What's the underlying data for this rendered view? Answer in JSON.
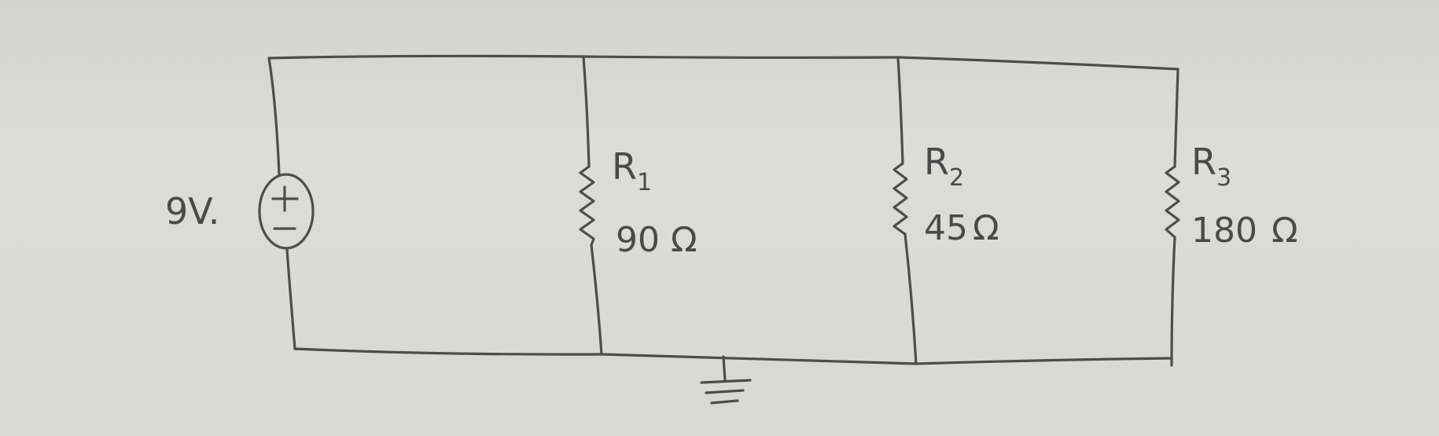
{
  "source": {
    "voltage_label": "9V."
  },
  "resistors": [
    {
      "name": "R",
      "subscript": "1",
      "value": "90",
      "unit": "Ω"
    },
    {
      "name": "R",
      "subscript": "2",
      "value": "45",
      "unit": "Ω"
    },
    {
      "name": "R",
      "subscript": "3",
      "value": "180",
      "unit": "Ω"
    }
  ]
}
